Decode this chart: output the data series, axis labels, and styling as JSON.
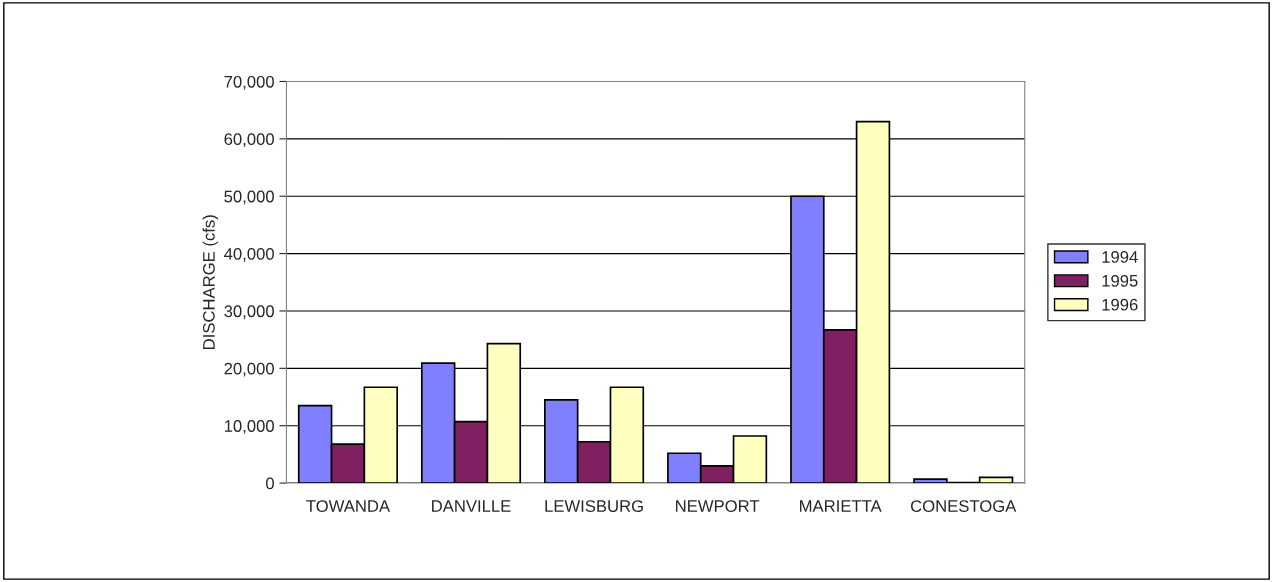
{
  "chart_data": {
    "type": "bar",
    "ylabel": "DISCHARGE (cfs)",
    "categories": [
      "TOWANDA",
      "DANVILLE",
      "LEWISBURG",
      "NEWPORT",
      "MARIETTA",
      "CONESTOGA"
    ],
    "series": [
      {
        "name": "1994",
        "color": "#8080ff",
        "values": [
          13500,
          20900,
          14500,
          5200,
          50000,
          700
        ]
      },
      {
        "name": "1995",
        "color": "#802060",
        "values": [
          6800,
          10700,
          7200,
          3000,
          26700,
          100
        ]
      },
      {
        "name": "1996",
        "color": "#ffffc0",
        "values": [
          16700,
          24300,
          16700,
          8200,
          63000,
          1000
        ]
      }
    ],
    "ylim": [
      0,
      70000
    ],
    "yticks": [
      {
        "value": 0,
        "label": "0"
      },
      {
        "value": 10000,
        "label": "10,000"
      },
      {
        "value": 20000,
        "label": "20,000"
      },
      {
        "value": 30000,
        "label": "30,000"
      },
      {
        "value": 40000,
        "label": "40,000"
      },
      {
        "value": 50000,
        "label": "50,000"
      },
      {
        "value": 60000,
        "label": "60,000"
      },
      {
        "value": 70000,
        "label": "70,000"
      }
    ],
    "grid": "y",
    "legend": "right"
  }
}
